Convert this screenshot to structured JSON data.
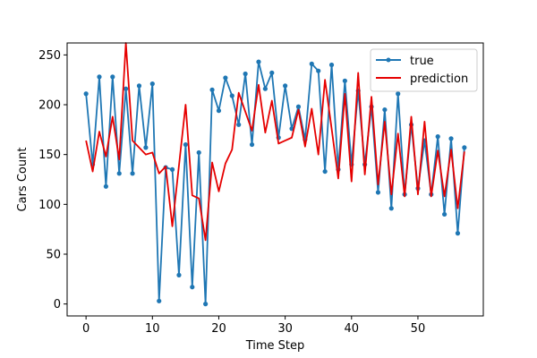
{
  "chart_data": {
    "type": "line",
    "title": "",
    "xlabel": "Time Step",
    "ylabel": "Cars Count",
    "xlim": [
      -2.85,
      59.85
    ],
    "ylim": [
      -12,
      262
    ],
    "xticks": [
      0,
      10,
      20,
      30,
      40,
      50
    ],
    "yticks": [
      0,
      50,
      100,
      150,
      200,
      250
    ],
    "grid": false,
    "legend_position": "top-right",
    "series": [
      {
        "name": "true",
        "color": "#1f77b4",
        "marker": "circle",
        "x": [
          0,
          1,
          2,
          3,
          4,
          5,
          6,
          7,
          8,
          9,
          10,
          11,
          12,
          13,
          14,
          15,
          16,
          17,
          18,
          19,
          20,
          21,
          22,
          23,
          24,
          25,
          26,
          27,
          28,
          29,
          30,
          31,
          32,
          33,
          34,
          35,
          36,
          37,
          38,
          39,
          40,
          41,
          42,
          43,
          44,
          45,
          46,
          47,
          48,
          49,
          50,
          51,
          52,
          53,
          54,
          55,
          56,
          57
        ],
        "values": [
          211,
          140,
          228,
          118,
          228,
          131,
          216,
          131,
          219,
          157,
          221,
          3,
          137,
          135,
          29,
          160,
          17,
          152,
          0,
          215,
          194,
          227,
          209,
          180,
          231,
          160,
          243,
          216,
          232,
          167,
          219,
          176,
          198,
          165,
          241,
          234,
          133,
          240,
          135,
          224,
          140,
          214,
          140,
          198,
          112,
          195,
          96,
          211,
          110,
          180,
          116,
          164,
          110,
          168,
          90,
          166,
          71,
          157
        ]
      },
      {
        "name": "prediction",
        "color": "#e60000",
        "marker": "none",
        "x": [
          0,
          1,
          2,
          3,
          4,
          5,
          6,
          7,
          8,
          9,
          10,
          11,
          12,
          13,
          14,
          15,
          16,
          17,
          18,
          19,
          20,
          21,
          22,
          23,
          24,
          25,
          26,
          27,
          28,
          29,
          30,
          31,
          32,
          33,
          34,
          35,
          36,
          37,
          38,
          39,
          40,
          41,
          42,
          43,
          44,
          45,
          46,
          47,
          48,
          49,
          50,
          51,
          52,
          53,
          54,
          55,
          56,
          57
        ],
        "values": [
          164,
          133,
          173,
          148,
          188,
          145,
          262,
          164,
          157,
          150,
          152,
          131,
          138,
          78,
          139,
          200,
          109,
          106,
          64,
          142,
          113,
          141,
          155,
          212,
          193,
          174,
          220,
          172,
          204,
          161,
          164,
          167,
          195,
          158,
          196,
          150,
          225,
          176,
          126,
          211,
          123,
          232,
          130,
          208,
          120,
          183,
          110,
          171,
          108,
          188,
          110,
          183,
          108,
          154,
          108,
          155,
          96,
          153
        ]
      }
    ]
  }
}
